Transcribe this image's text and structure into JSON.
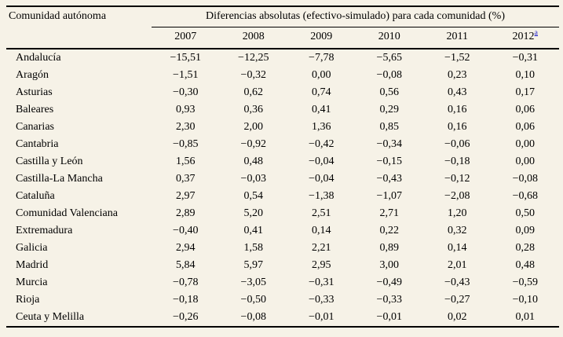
{
  "page": {
    "background_color": "#f6f2e7",
    "rule_color": "#000000",
    "text_color": "#000000",
    "link_color": "#2929cc"
  },
  "table": {
    "column_header": "Comunidad autónoma",
    "group_header": "Diferencias absolutas (efectivo-simulado) para cada comunidad (%)",
    "years": [
      "2007",
      "2008",
      "2009",
      "2010",
      "2011",
      "2012"
    ],
    "footnote_marker": "a",
    "rows": [
      {
        "name": "Andalucía",
        "values": [
          "−15,51",
          "−12,25",
          "−7,78",
          "−5,65",
          "−1,52",
          "−0,31"
        ]
      },
      {
        "name": "Aragón",
        "values": [
          "−1,51",
          "−0,32",
          "0,00",
          "−0,08",
          "0,23",
          "0,10"
        ]
      },
      {
        "name": "Asturias",
        "values": [
          "−0,30",
          "0,62",
          "0,74",
          "0,56",
          "0,43",
          "0,17"
        ]
      },
      {
        "name": "Baleares",
        "values": [
          "0,93",
          "0,36",
          "0,41",
          "0,29",
          "0,16",
          "0,06"
        ]
      },
      {
        "name": "Canarias",
        "values": [
          "2,30",
          "2,00",
          "1,36",
          "0,85",
          "0,16",
          "0,06"
        ]
      },
      {
        "name": "Cantabria",
        "values": [
          "−0,85",
          "−0,92",
          "−0,42",
          "−0,34",
          "−0,06",
          "0,00"
        ]
      },
      {
        "name": "Castilla y León",
        "values": [
          "1,56",
          "0,48",
          "−0,04",
          "−0,15",
          "−0,18",
          "0,00"
        ]
      },
      {
        "name": "Castilla-La Mancha",
        "values": [
          "0,37",
          "−0,03",
          "−0,04",
          "−0,43",
          "−0,12",
          "−0,08"
        ]
      },
      {
        "name": "Cataluña",
        "values": [
          "2,97",
          "0,54",
          "−1,38",
          "−1,07",
          "−2,08",
          "−0,68"
        ]
      },
      {
        "name": "Comunidad Valenciana",
        "values": [
          "2,89",
          "5,20",
          "2,51",
          "2,71",
          "1,20",
          "0,50"
        ]
      },
      {
        "name": "Extremadura",
        "values": [
          "−0,40",
          "0,41",
          "0,14",
          "0,22",
          "0,32",
          "0,09"
        ]
      },
      {
        "name": "Galicia",
        "values": [
          "2,94",
          "1,58",
          "2,21",
          "0,89",
          "0,14",
          "0,28"
        ]
      },
      {
        "name": "Madrid",
        "values": [
          "5,84",
          "5,97",
          "2,95",
          "3,00",
          "2,01",
          "0,48"
        ]
      },
      {
        "name": "Murcia",
        "values": [
          "−0,78",
          "−3,05",
          "−0,31",
          "−0,49",
          "−0,43",
          "−0,59"
        ]
      },
      {
        "name": "Rioja",
        "values": [
          "−0,18",
          "−0,50",
          "−0,33",
          "−0,33",
          "−0,27",
          "−0,10"
        ]
      },
      {
        "name": "Ceuta y Melilla",
        "values": [
          "−0,26",
          "−0,08",
          "−0,01",
          "−0,01",
          "0,02",
          "0,01"
        ]
      }
    ]
  }
}
